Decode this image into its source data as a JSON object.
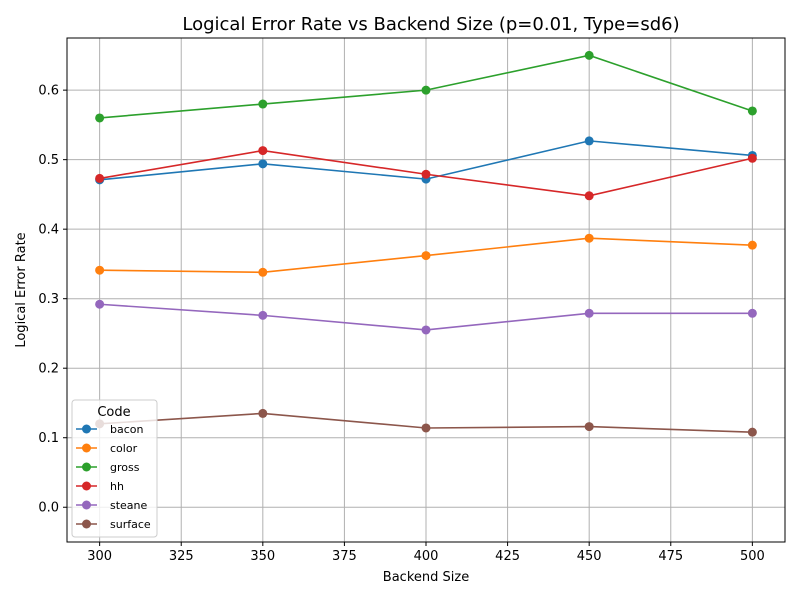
{
  "chart_data": {
    "type": "line",
    "title": "Logical Error Rate vs Backend Size (p=0.01, Type=sd6)",
    "xlabel": "Backend Size",
    "ylabel": "Logical Error Rate",
    "x": [
      300,
      350,
      400,
      450,
      500
    ],
    "xlim": [
      290,
      510
    ],
    "ylim": [
      -0.05,
      0.675
    ],
    "xticks": [
      "300",
      "325",
      "350",
      "375",
      "400",
      "425",
      "450",
      "475",
      "500"
    ],
    "yticks": [
      "0.0",
      "0.1",
      "0.2",
      "0.3",
      "0.4",
      "0.5",
      "0.6"
    ],
    "grid": true,
    "legend": {
      "title": "Code",
      "placement": "lower-left"
    },
    "series": [
      {
        "name": "bacon",
        "color": "#1f77b4",
        "values": [
          0.471,
          0.494,
          0.472,
          0.527,
          0.506
        ]
      },
      {
        "name": "color",
        "color": "#ff7f0e",
        "values": [
          0.341,
          0.338,
          0.362,
          0.387,
          0.377
        ]
      },
      {
        "name": "gross",
        "color": "#2ca02c",
        "values": [
          0.56,
          0.58,
          0.6,
          0.65,
          0.57
        ]
      },
      {
        "name": "hh",
        "color": "#d62728",
        "values": [
          0.473,
          0.513,
          0.479,
          0.448,
          0.502
        ]
      },
      {
        "name": "steane",
        "color": "#9467bd",
        "values": [
          0.292,
          0.276,
          0.255,
          0.279,
          0.279
        ]
      },
      {
        "name": "surface",
        "color": "#8c564b",
        "values": [
          0.12,
          0.135,
          0.114,
          0.116,
          0.108
        ]
      }
    ]
  }
}
